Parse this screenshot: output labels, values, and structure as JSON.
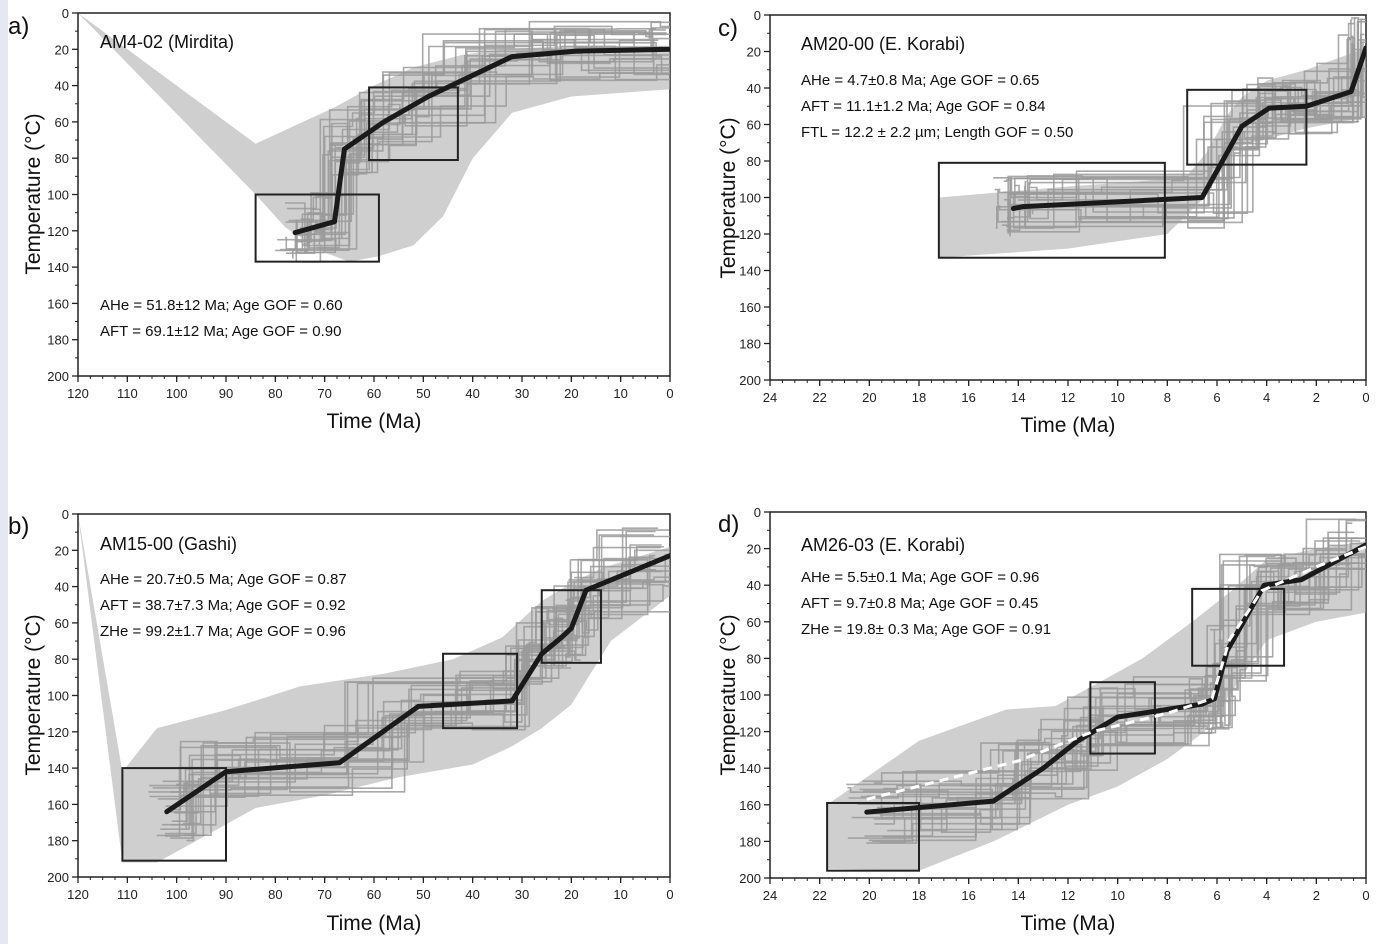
{
  "colors": {
    "envelope": "#a8a8a8",
    "best_fit": "#1a1a1a",
    "frame": "#222222",
    "side_strip": "#e3e8f3",
    "mean_path": "#ffffff"
  },
  "chart_data": [
    {
      "type": "line",
      "panel": "a)",
      "title": "AM4-02 (Mirdita)",
      "xlabel": "Time (Ma)",
      "ylabel": "Temperature (°C)",
      "xlim": [
        120,
        0
      ],
      "ylim": [
        0,
        200
      ],
      "x_ticks": [
        120,
        110,
        100,
        90,
        80,
        70,
        60,
        50,
        40,
        30,
        20,
        10,
        0
      ],
      "y_ticks": [
        0,
        20,
        40,
        60,
        80,
        100,
        120,
        140,
        160,
        180,
        200
      ],
      "annotations": [
        "AHe = 51.8±12 Ma; Age GOF = 0.60",
        "AFT = 69.1±12 Ma; Age GOF = 0.90"
      ],
      "constraint_boxes": [
        {
          "t": [
            84,
            59
          ],
          "temp": [
            100,
            137
          ]
        },
        {
          "t": [
            61,
            43
          ],
          "temp": [
            41,
            81
          ]
        }
      ],
      "best_fit": {
        "x": [
          76,
          68,
          66,
          58,
          49,
          32,
          19,
          0
        ],
        "y": [
          121,
          115,
          75,
          60,
          46,
          24,
          21,
          20
        ]
      },
      "envelope": {
        "x": [
          120,
          84,
          78,
          70,
          65,
          59,
          52,
          46,
          40,
          32,
          20,
          0,
          0,
          20,
          34,
          42,
          52,
          60,
          68,
          76,
          84,
          120
        ],
        "y": [
          0,
          100,
          118,
          132,
          137,
          134,
          128,
          112,
          80,
          55,
          46,
          42,
          18,
          18,
          20,
          23,
          30,
          40,
          52,
          62,
          72,
          0
        ]
      }
    },
    {
      "type": "line",
      "panel": "b)",
      "title": "AM15-00 (Gashi)",
      "xlabel": "Time (Ma)",
      "ylabel": "Temperature (°C)",
      "xlim": [
        120,
        0
      ],
      "ylim": [
        0,
        200
      ],
      "x_ticks": [
        120,
        110,
        100,
        90,
        80,
        70,
        60,
        50,
        40,
        30,
        20,
        10,
        0
      ],
      "y_ticks": [
        0,
        20,
        40,
        60,
        80,
        100,
        120,
        140,
        160,
        180,
        200
      ],
      "annotations": [
        "AHe = 20.7±0.5 Ma; Age GOF = 0.87",
        "AFT = 38.7±7.3 Ma; Age GOF = 0.92",
        "ZHe = 99.2±1.7 Ma; Age GOF = 0.96"
      ],
      "constraint_boxes": [
        {
          "t": [
            111,
            90
          ],
          "temp": [
            140,
            191
          ]
        },
        {
          "t": [
            46,
            31
          ],
          "temp": [
            77,
            118
          ]
        },
        {
          "t": [
            26,
            14
          ],
          "temp": [
            42,
            82
          ]
        }
      ],
      "best_fit": {
        "x": [
          102,
          90,
          67,
          51,
          32,
          26,
          22,
          20,
          17,
          0
        ],
        "y": [
          164,
          142,
          137,
          106,
          103,
          77,
          68,
          63,
          42,
          23
        ]
      },
      "envelope": {
        "x": [
          120,
          111,
          104,
          96,
          84,
          70,
          55,
          40,
          32,
          26,
          20,
          12,
          0,
          0,
          14,
          20,
          26,
          34,
          44,
          58,
          75,
          90,
          104,
          111,
          120
        ],
        "y": [
          0,
          192,
          192,
          180,
          162,
          155,
          145,
          138,
          128,
          118,
          105,
          70,
          45,
          18,
          30,
          38,
          48,
          68,
          80,
          88,
          95,
          108,
          118,
          142,
          0
        ]
      }
    },
    {
      "type": "line",
      "panel": "c)",
      "title": "AM20-00 (E. Korabi)",
      "xlabel": "Time (Ma)",
      "ylabel": "Temperature (°C)",
      "xlim": [
        24,
        0
      ],
      "ylim": [
        0,
        200
      ],
      "x_ticks": [
        24,
        22,
        20,
        18,
        16,
        14,
        12,
        10,
        8,
        6,
        4,
        2,
        0
      ],
      "y_ticks": [
        0,
        20,
        40,
        60,
        80,
        100,
        120,
        140,
        160,
        180,
        200
      ],
      "annotations": [
        "AHe = 4.7±0.8 Ma; Age GOF = 0.65",
        "AFT = 11.1±1.2 Ma; Age GOF = 0.84",
        "FTL = 12.2 ± 2.2 µm; Length GOF = 0.50"
      ],
      "constraint_boxes": [
        {
          "t": [
            17.2,
            8.1
          ],
          "temp": [
            81,
            133
          ]
        },
        {
          "t": [
            7.2,
            2.4
          ],
          "temp": [
            41,
            82
          ]
        }
      ],
      "best_fit": {
        "x": [
          14.2,
          13.8,
          6.6,
          5,
          3.9,
          2.4,
          0.6,
          0
        ],
        "y": [
          106,
          105,
          100,
          61,
          51,
          50,
          42,
          18
        ]
      },
      "envelope": {
        "x": [
          17.2,
          12,
          8,
          7.4,
          6.5,
          5.8,
          5.2,
          4,
          2.4,
          0,
          0,
          2.4,
          4,
          5,
          5.6,
          6.4,
          7.2,
          8,
          12,
          17.2
        ],
        "y": [
          133,
          128,
          120,
          112,
          100,
          85,
          72,
          68,
          62,
          56,
          18,
          30,
          36,
          45,
          55,
          75,
          88,
          90,
          94,
          100
        ]
      }
    },
    {
      "type": "line",
      "panel": "d)",
      "title": "AM26-03 (E. Korabi)",
      "xlabel": "Time (Ma)",
      "ylabel": "Temperature (°C)",
      "xlim": [
        24,
        0
      ],
      "ylim": [
        0,
        200
      ],
      "x_ticks": [
        24,
        22,
        20,
        18,
        16,
        14,
        12,
        10,
        8,
        6,
        4,
        2,
        0
      ],
      "y_ticks": [
        0,
        20,
        40,
        60,
        80,
        100,
        120,
        140,
        160,
        180,
        200
      ],
      "annotations": [
        "AHe = 5.5±0.1 Ma; Age GOF = 0.96",
        "AFT = 9.7±0.8 Ma; Age GOF = 0.45",
        "ZHe = 19.8± 0.3 Ma; Age GOF = 0.91"
      ],
      "constraint_boxes": [
        {
          "t": [
            21.7,
            18
          ],
          "temp": [
            159,
            196
          ]
        },
        {
          "t": [
            11.1,
            8.5
          ],
          "temp": [
            93,
            132
          ]
        },
        {
          "t": [
            7,
            3.3
          ],
          "temp": [
            42,
            84
          ]
        }
      ],
      "best_fit": {
        "x": [
          20.1,
          15,
          13,
          11.6,
          10,
          6.6,
          6.1,
          5.6,
          4.1,
          2.6,
          0
        ],
        "y": [
          164,
          158,
          140,
          125,
          112,
          105,
          102,
          76,
          40,
          37,
          18
        ]
      },
      "mean_path": {
        "x": [
          20.1,
          14,
          11,
          8,
          6.2,
          5.5,
          4.2,
          2,
          0
        ],
        "y": [
          157,
          136,
          120,
          110,
          102,
          70,
          43,
          30,
          19
        ]
      },
      "envelope": {
        "x": [
          21.7,
          18,
          15,
          12,
          10,
          8,
          6.5,
          5.5,
          4,
          2,
          0,
          0,
          2,
          4,
          5.5,
          7,
          9,
          11,
          12.5,
          14.5,
          18,
          21.7
        ],
        "y": [
          195,
          196,
          180,
          160,
          150,
          135,
          120,
          100,
          70,
          60,
          55,
          16,
          20,
          26,
          44,
          60,
          80,
          95,
          106,
          108,
          125,
          160
        ]
      }
    }
  ]
}
